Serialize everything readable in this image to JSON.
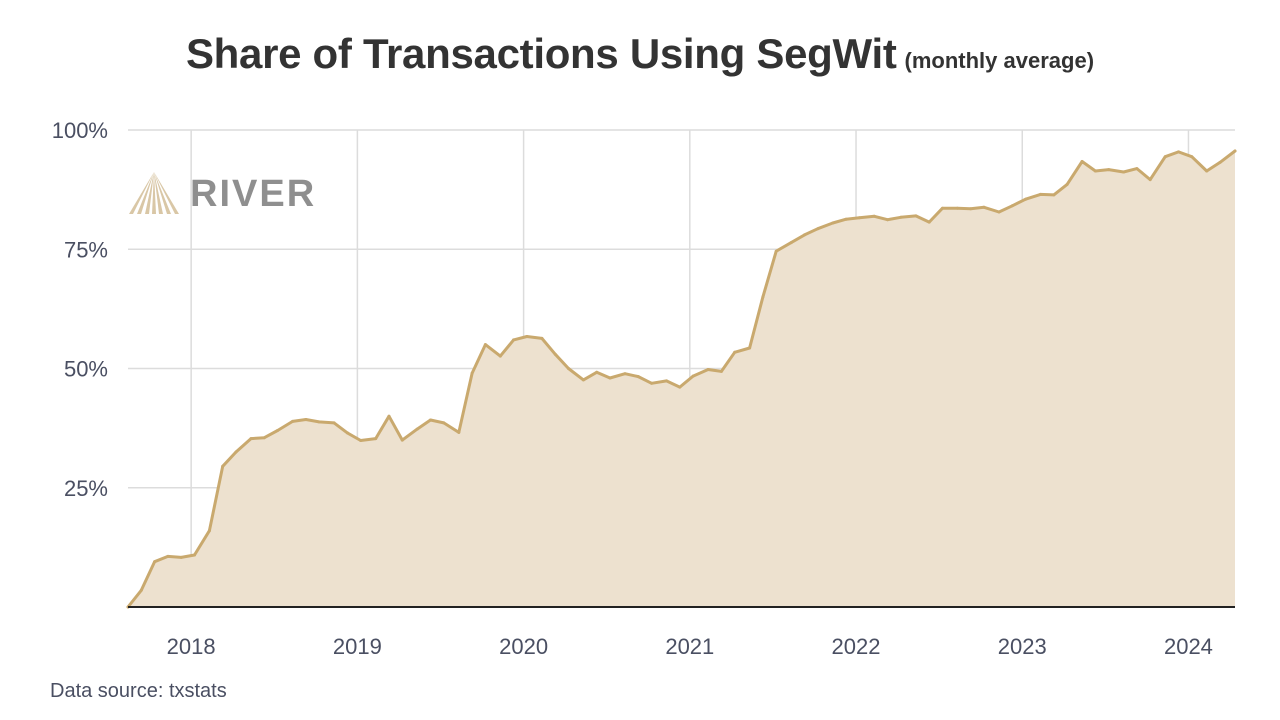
{
  "title": "Share of Transactions Using SegWit",
  "subtitle": "(monthly average)",
  "logo_text": "RIVER",
  "source": "Data source: txstats",
  "colors": {
    "line": "#c9a96e",
    "fill": "#ede1cf",
    "grid": "#dcdcdc",
    "axis": "#222222",
    "text": "#4a4f62",
    "logo": "#8f8f8f"
  },
  "chart_data": {
    "type": "area",
    "title": "Share of Transactions Using SegWit",
    "xlabel": "",
    "ylabel": "",
    "xlim": [
      2017.62,
      2024.28
    ],
    "ylim": [
      0,
      100
    ],
    "x_ticks": [
      {
        "value": 2018,
        "label": "2018"
      },
      {
        "value": 2019,
        "label": "2019"
      },
      {
        "value": 2020,
        "label": "2020"
      },
      {
        "value": 2021,
        "label": "2021"
      },
      {
        "value": 2022,
        "label": "2022"
      },
      {
        "value": 2023,
        "label": "2023"
      },
      {
        "value": 2024,
        "label": "2024"
      }
    ],
    "y_ticks": [
      {
        "value": 25,
        "label": "25%"
      },
      {
        "value": 50,
        "label": "50%"
      },
      {
        "value": 75,
        "label": "75%"
      },
      {
        "value": 100,
        "label": "100%"
      }
    ],
    "grid": true,
    "series": [
      {
        "points": [
          [
            2017.62,
            0
          ],
          [
            2017.7,
            3.5
          ],
          [
            2017.78,
            9.5
          ],
          [
            2017.86,
            10.6
          ],
          [
            2017.94,
            10.4
          ],
          [
            2018.02,
            10.9
          ],
          [
            2018.11,
            16
          ],
          [
            2018.19,
            29.5
          ],
          [
            2018.27,
            32.5
          ],
          [
            2018.36,
            35.3
          ],
          [
            2018.44,
            35.5
          ],
          [
            2018.52,
            37
          ],
          [
            2018.61,
            38.9
          ],
          [
            2018.69,
            39.3
          ],
          [
            2018.77,
            38.8
          ],
          [
            2018.86,
            38.6
          ],
          [
            2018.94,
            36.5
          ],
          [
            2019.02,
            34.9
          ],
          [
            2019.11,
            35.3
          ],
          [
            2019.19,
            40
          ],
          [
            2019.27,
            35
          ],
          [
            2019.36,
            37.3
          ],
          [
            2019.44,
            39.2
          ],
          [
            2019.52,
            38.6
          ],
          [
            2019.61,
            36.6
          ],
          [
            2019.69,
            49
          ],
          [
            2019.77,
            55
          ],
          [
            2019.86,
            52.6
          ],
          [
            2019.94,
            56
          ],
          [
            2020.02,
            56.7
          ],
          [
            2020.11,
            56.3
          ],
          [
            2020.19,
            53
          ],
          [
            2020.27,
            50
          ],
          [
            2020.36,
            47.6
          ],
          [
            2020.44,
            49.2
          ],
          [
            2020.52,
            48
          ],
          [
            2020.61,
            48.9
          ],
          [
            2020.69,
            48.3
          ],
          [
            2020.77,
            46.9
          ],
          [
            2020.86,
            47.4
          ],
          [
            2020.94,
            46.1
          ],
          [
            2021.02,
            48.4
          ],
          [
            2021.11,
            49.8
          ],
          [
            2021.19,
            49.4
          ],
          [
            2021.27,
            53.4
          ],
          [
            2021.36,
            54.3
          ],
          [
            2021.44,
            65
          ],
          [
            2021.52,
            74.6
          ],
          [
            2021.61,
            76.4
          ],
          [
            2021.69,
            78
          ],
          [
            2021.77,
            79.3
          ],
          [
            2021.86,
            80.5
          ],
          [
            2021.94,
            81.3
          ],
          [
            2022.02,
            81.6
          ],
          [
            2022.11,
            81.9
          ],
          [
            2022.19,
            81.2
          ],
          [
            2022.27,
            81.7
          ],
          [
            2022.36,
            82
          ],
          [
            2022.44,
            80.7
          ],
          [
            2022.52,
            83.6
          ],
          [
            2022.61,
            83.6
          ],
          [
            2022.69,
            83.5
          ],
          [
            2022.77,
            83.8
          ],
          [
            2022.86,
            82.8
          ],
          [
            2022.94,
            84.1
          ],
          [
            2023.02,
            85.5
          ],
          [
            2023.11,
            86.5
          ],
          [
            2023.19,
            86.4
          ],
          [
            2023.27,
            88.6
          ],
          [
            2023.36,
            93.4
          ],
          [
            2023.44,
            91.4
          ],
          [
            2023.52,
            91.7
          ],
          [
            2023.61,
            91.2
          ],
          [
            2023.69,
            91.9
          ],
          [
            2023.77,
            89.6
          ],
          [
            2023.86,
            94.4
          ],
          [
            2023.94,
            95.4
          ],
          [
            2024.02,
            94.4
          ],
          [
            2024.11,
            91.4
          ],
          [
            2024.19,
            93.2
          ],
          [
            2024.28,
            95.6
          ]
        ]
      }
    ]
  }
}
